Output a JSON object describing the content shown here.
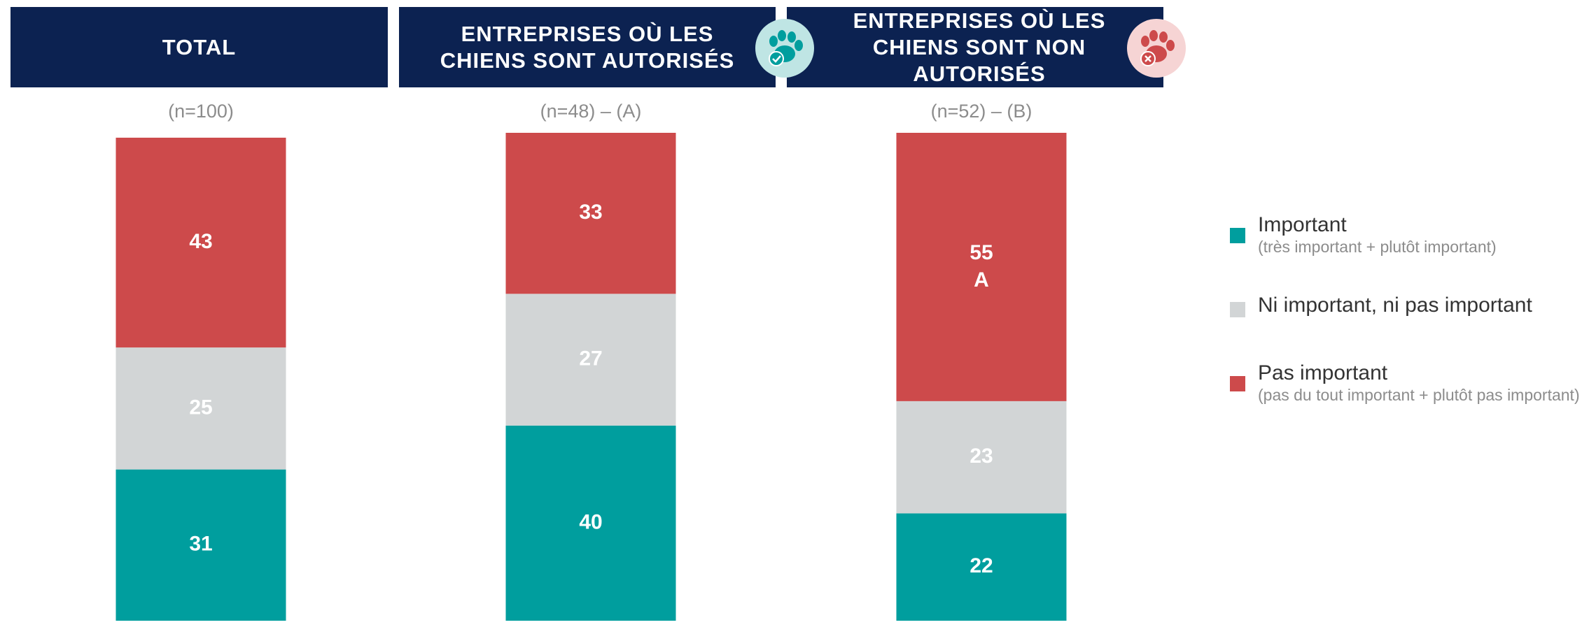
{
  "chart_data": {
    "type": "stacked-bar",
    "categories": [
      "TOTAL",
      "ENTREPRISES OÙ LES CHIENS SONT AUTORISÉS",
      "ENTREPRISES OÙ LES CHIENS SONT NON AUTORISÉS"
    ],
    "subtitles": [
      "(n=100)",
      "(n=48) – (A)",
      "(n=52) – (B)"
    ],
    "ylim": [
      0,
      100
    ],
    "series": [
      {
        "name": "Important",
        "note": "(très important + plutôt important)",
        "color": "#009e9e",
        "values": [
          31,
          40,
          22
        ]
      },
      {
        "name": "Ni important, ni pas important",
        "color": "#d2d5d6",
        "values": [
          25,
          27,
          23
        ]
      },
      {
        "name": "Pas important",
        "note": "(pas du tout important + plutôt pas important)",
        "color": "#cd4a4b",
        "values": [
          43,
          33,
          55
        ],
        "significance": [
          null,
          null,
          "A"
        ]
      }
    ],
    "legend": "right"
  }
}
